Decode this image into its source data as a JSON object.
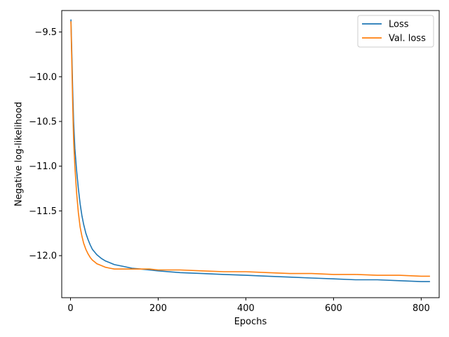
{
  "chart_data": {
    "type": "line",
    "title": "",
    "xlabel": "Epochs",
    "ylabel": "Negative log-likelihood",
    "xlim": [
      -20,
      841
    ],
    "ylim": [
      -12.47,
      -9.26
    ],
    "grid": false,
    "legend_position": "top-right",
    "x_ticks": [
      0,
      200,
      400,
      600,
      800
    ],
    "x_tick_labels": [
      "0",
      "200",
      "400",
      "600",
      "800"
    ],
    "y_ticks": [
      -9.5,
      -10.0,
      -10.5,
      -11.0,
      -11.5,
      -12.0
    ],
    "y_tick_labels": [
      "−9.5",
      "−10.0",
      "−10.5",
      "−11.0",
      "−11.5",
      "−12.0"
    ],
    "series": [
      {
        "name": "Loss",
        "color": "#1f77b4",
        "x": [
          1,
          3,
          5,
          7,
          10,
          14,
          18,
          22,
          26,
          30,
          35,
          40,
          45,
          50,
          55,
          60,
          70,
          80,
          90,
          100,
          120,
          140,
          160,
          180,
          200,
          250,
          300,
          350,
          400,
          450,
          500,
          550,
          600,
          650,
          700,
          750,
          800,
          820
        ],
        "y": [
          -9.36,
          -9.75,
          -10.15,
          -10.5,
          -10.8,
          -11.05,
          -11.25,
          -11.42,
          -11.55,
          -11.65,
          -11.75,
          -11.82,
          -11.88,
          -11.93,
          -11.96,
          -11.99,
          -12.03,
          -12.06,
          -12.08,
          -12.1,
          -12.12,
          -12.14,
          -12.15,
          -12.16,
          -12.17,
          -12.19,
          -12.2,
          -12.21,
          -12.22,
          -12.23,
          -12.24,
          -12.25,
          -12.26,
          -12.27,
          -12.27,
          -12.28,
          -12.29,
          -12.29
        ]
      },
      {
        "name": "Val. loss",
        "color": "#ff7f0e",
        "x": [
          1,
          3,
          5,
          7,
          10,
          14,
          18,
          22,
          26,
          30,
          35,
          40,
          45,
          50,
          55,
          60,
          70,
          80,
          90,
          100,
          120,
          140,
          160,
          180,
          200,
          250,
          300,
          350,
          400,
          450,
          500,
          550,
          600,
          650,
          700,
          750,
          800,
          820
        ],
        "y": [
          -9.38,
          -9.85,
          -10.3,
          -10.7,
          -11.0,
          -11.3,
          -11.52,
          -11.68,
          -11.78,
          -11.86,
          -11.93,
          -11.98,
          -12.02,
          -12.05,
          -12.07,
          -12.09,
          -12.11,
          -12.13,
          -12.14,
          -12.15,
          -12.15,
          -12.15,
          -12.15,
          -12.15,
          -12.16,
          -12.16,
          -12.17,
          -12.18,
          -12.18,
          -12.19,
          -12.2,
          -12.2,
          -12.21,
          -12.21,
          -12.22,
          -12.22,
          -12.23,
          -12.23
        ]
      }
    ]
  }
}
